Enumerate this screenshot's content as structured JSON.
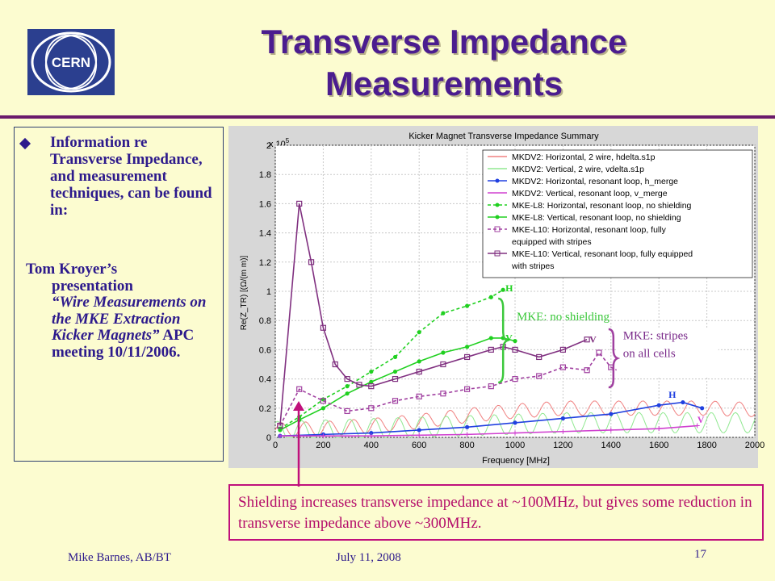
{
  "slide": {
    "title": "Transverse Impedance Measurements",
    "logo_text": "CERN",
    "bullet": "Information re Transverse Impedance, and measurement techniques, can be found in:",
    "reference": {
      "author": "Tom Kroyer’s",
      "line2": "presentation",
      "work_title": "“Wire Measurements on the MKE Extraction Kicker Magnets”",
      "rest": "APC meeting 10/11/2006."
    },
    "callout": "Shielding increases transverse impedance at ~100MHz, but gives some reduction in transverse impedance above ~300MHz.",
    "footer": {
      "author": "Mike Barnes, AB/BT",
      "date": "July 11, 2008",
      "page": "17"
    }
  },
  "colors": {
    "title": "#4b1d8f",
    "text": "#2d1a8c",
    "callout": "#b40c6a",
    "annotation": "#3cc83c",
    "rule": "#6b1a6b"
  },
  "chart_data": {
    "type": "line",
    "title": "Kicker Magnet Transverse Impedance Summary",
    "xlabel": "Frequency [MHz]",
    "ylabel": "Re(Z_TR) [(Ω/(m m)]",
    "y_multiplier": "x 10^5",
    "y_multiplier_exp": "5",
    "xlim": [
      0,
      2000
    ],
    "ylim": [
      0,
      2
    ],
    "xticks": [
      0,
      200,
      400,
      600,
      800,
      1000,
      1200,
      1400,
      1600,
      1800,
      2000
    ],
    "yticks": [
      0,
      0.2,
      0.4,
      0.6,
      0.8,
      1,
      1.2,
      1.4,
      1.6,
      1.8,
      2
    ],
    "grid": true,
    "legend_position": "top-right",
    "series": [
      {
        "name": "MKDV2: Horizontal, 2 wire, hdelta.s1p",
        "color": "#f08080",
        "style": "wave",
        "x": [
          0,
          200,
          400,
          600,
          800,
          1000,
          1200,
          1400,
          1600,
          1800,
          2000
        ],
        "y": [
          0.05,
          0.06,
          0.08,
          0.11,
          0.15,
          0.18,
          0.2,
          0.2,
          0.2,
          0.2,
          0.19
        ],
        "amp": 0.05
      },
      {
        "name": "MKDV2: Vertical, 2 wire, vdelta.s1p",
        "color": "#90e890",
        "style": "wave",
        "x": [
          0,
          200,
          400,
          600,
          800,
          1000,
          1200,
          1400,
          1600,
          1800,
          2000
        ],
        "y": [
          0.04,
          0.05,
          0.06,
          0.07,
          0.08,
          0.09,
          0.1,
          0.1,
          0.1,
          0.1,
          0.1
        ],
        "amp": 0.07
      },
      {
        "name": "MKDV2: Horizontal, resonant loop, h_merge",
        "color": "#2040e0",
        "marker": "dot",
        "x": [
          20,
          200,
          400,
          600,
          800,
          1000,
          1200,
          1400,
          1600,
          1700,
          1780
        ],
        "y": [
          0.01,
          0.02,
          0.03,
          0.05,
          0.07,
          0.1,
          0.13,
          0.16,
          0.22,
          0.24,
          0.2
        ]
      },
      {
        "name": "MKDV2: Vertical, resonant loop, v_merge",
        "color": "#d040d0",
        "marker": "cross",
        "x": [
          20,
          200,
          400,
          600,
          800,
          1000,
          1200,
          1400,
          1600,
          1760
        ],
        "y": [
          0.01,
          0.01,
          0.01,
          0.015,
          0.02,
          0.03,
          0.04,
          0.05,
          0.06,
          0.08
        ]
      },
      {
        "name": "MKE-L8: Horizontal, resonant loop, no shielding",
        "color": "#20d020",
        "marker": "dot",
        "dashed": true,
        "x": [
          20,
          100,
          200,
          300,
          400,
          500,
          600,
          700,
          800,
          900,
          950
        ],
        "y": [
          0.06,
          0.14,
          0.26,
          0.35,
          0.45,
          0.55,
          0.72,
          0.85,
          0.9,
          0.96,
          1.01
        ]
      },
      {
        "name": "MKE-L8: Vertical, resonant loop, no shielding",
        "color": "#20d020",
        "marker": "dot",
        "x": [
          20,
          100,
          200,
          300,
          400,
          500,
          600,
          700,
          800,
          900,
          950,
          1000
        ],
        "y": [
          0.05,
          0.12,
          0.2,
          0.3,
          0.38,
          0.45,
          0.52,
          0.58,
          0.62,
          0.68,
          0.68,
          0.66
        ]
      },
      {
        "name": "MKE-L10: Horizontal, resonant loop, fully equipped with stripes",
        "color": "#a040a0",
        "marker": "square",
        "dashed": true,
        "x": [
          20,
          100,
          200,
          300,
          400,
          500,
          600,
          700,
          800,
          900,
          1000,
          1100,
          1200,
          1300,
          1350,
          1400,
          1450,
          1500
        ],
        "y": [
          0.08,
          0.33,
          0.25,
          0.18,
          0.2,
          0.25,
          0.28,
          0.3,
          0.33,
          0.35,
          0.4,
          0.42,
          0.48,
          0.46,
          0.58,
          0.48,
          0.44,
          0.52
        ]
      },
      {
        "name": "MKE-L10: Vertical, resonant loop, fully equipped with stripes",
        "color": "#803080",
        "marker": "square",
        "x": [
          20,
          100,
          150,
          200,
          250,
          300,
          350,
          400,
          500,
          600,
          700,
          800,
          900,
          950,
          1000,
          1100,
          1200,
          1300
        ],
        "y": [
          0.08,
          1.6,
          1.2,
          0.75,
          0.5,
          0.4,
          0.36,
          0.35,
          0.4,
          0.45,
          0.5,
          0.55,
          0.6,
          0.62,
          0.6,
          0.55,
          0.6,
          0.67
        ]
      }
    ],
    "annotations": [
      {
        "text": "MKE: no shielding",
        "x": 1000,
        "y": 0.83
      },
      {
        "text": "MKE: stripes on all cells",
        "x": 1430,
        "y": 0.55
      },
      {
        "text": "H",
        "x": 960,
        "y": 1.0,
        "color": "#20d020"
      },
      {
        "text": "V",
        "x": 960,
        "y": 0.66,
        "color": "#20d020"
      },
      {
        "text": "V",
        "x": 1310,
        "y": 0.65,
        "color": "#803080"
      },
      {
        "text": "H",
        "x": 1440,
        "y": 0.43,
        "color": "#803080"
      },
      {
        "text": "H",
        "x": 1640,
        "y": 0.27,
        "color": "#2040e0"
      },
      {
        "text": "V",
        "x": 1760,
        "y": 0.1,
        "color": "#d040d0"
      }
    ]
  }
}
